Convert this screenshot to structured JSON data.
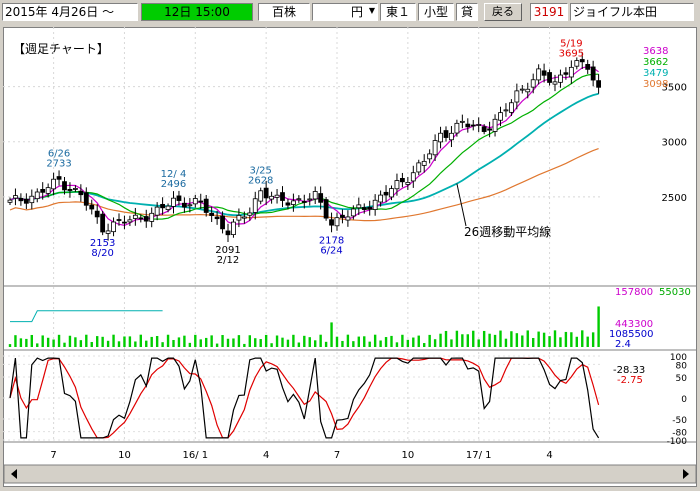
{
  "toolbar": {
    "date_label": "2015年  4月26日 ～",
    "period_value": "12日 15:00",
    "unit_label": "百株",
    "currency_label": "円",
    "market_label": "東１",
    "size_label": "小型",
    "lending_label": "貸",
    "back_button": "戻る",
    "stock_code": "3191",
    "stock_name": "ジョイフル本田"
  },
  "colors": {
    "background": "#ffffff",
    "up_candle": "#ffffff",
    "down_candle": "#000000",
    "ma_short": "#cc00cc",
    "ma_mid": "#00b000",
    "ma_26w": "#00b0b0",
    "ma_long": "#e07830",
    "volume": "#00cc00",
    "stoch_k": "#000000",
    "stoch_d": "#e00000",
    "peak_label": "#e00000",
    "trough_label": "#0000cc",
    "date_bar": "#00cc00"
  },
  "chart_data": {
    "type": "candlestick",
    "title": "【週足チャート】",
    "weeks": 109,
    "price_ylim": [
      1700,
      3950
    ],
    "price_ticks": [
      "3500",
      "3000",
      "2500"
    ],
    "x_tick_labels": [
      "7",
      "10",
      "16/ 1",
      "4",
      "7",
      "10",
      "17/ 1",
      "4"
    ],
    "legend_right": [
      {
        "label": "3638",
        "color": "#cc00cc"
      },
      {
        "label": "3662",
        "color": "#00b000"
      },
      {
        "label": "3479",
        "color": "#00b0b0"
      },
      {
        "label": "3098",
        "color": "#e07830"
      }
    ],
    "annotations": [
      {
        "date": "6/26",
        "value": "2733",
        "kind": "peak",
        "week": 9
      },
      {
        "date": "12/ 4",
        "value": "2496",
        "kind": "peak",
        "week": 30
      },
      {
        "date": "3/25",
        "value": "2628",
        "kind": "peak",
        "week": 46
      },
      {
        "date": "5/19",
        "value": "3695",
        "kind": "peak",
        "week": 103
      },
      {
        "date": "8/20",
        "value": "2153",
        "kind": "trough",
        "week": 17
      },
      {
        "date": "2/12",
        "value": "2091",
        "kind": "trough",
        "week": 40
      },
      {
        "date": "6/24",
        "value": "2178",
        "kind": "trough",
        "week": 59
      }
    ],
    "ma_label": "26週移動平均線",
    "ma_label_week": 82,
    "anchors": [
      [
        0,
        2450
      ],
      [
        5,
        2520
      ],
      [
        9,
        2650
      ],
      [
        13,
        2510
      ],
      [
        17,
        2220
      ],
      [
        22,
        2290
      ],
      [
        27,
        2360
      ],
      [
        30,
        2470
      ],
      [
        35,
        2430
      ],
      [
        40,
        2190
      ],
      [
        44,
        2380
      ],
      [
        46,
        2560
      ],
      [
        49,
        2460
      ],
      [
        53,
        2470
      ],
      [
        56,
        2500
      ],
      [
        59,
        2270
      ],
      [
        63,
        2360
      ],
      [
        67,
        2460
      ],
      [
        72,
        2640
      ],
      [
        76,
        2820
      ],
      [
        79,
        3060
      ],
      [
        83,
        3160
      ],
      [
        87,
        3120
      ],
      [
        90,
        3220
      ],
      [
        93,
        3440
      ],
      [
        97,
        3610
      ],
      [
        100,
        3540
      ],
      [
        103,
        3700
      ],
      [
        106,
        3680
      ],
      [
        108,
        3479
      ]
    ],
    "volume": {
      "ylim": [
        0,
        1600000
      ],
      "labels": [
        "157800",
        "443300",
        "1085500",
        "2.4"
      ],
      "label_colors": [
        "#cc00cc",
        "#cc00cc",
        "#0000cc",
        "#0000cc"
      ],
      "side_label": "55030"
    },
    "oscillator": {
      "ylim": [
        -100,
        100
      ],
      "ticks": [
        "100",
        "80",
        "50",
        "0",
        "-50",
        "-80",
        "-100"
      ],
      "values": [
        "-28.33",
        "-2.75"
      ]
    }
  }
}
